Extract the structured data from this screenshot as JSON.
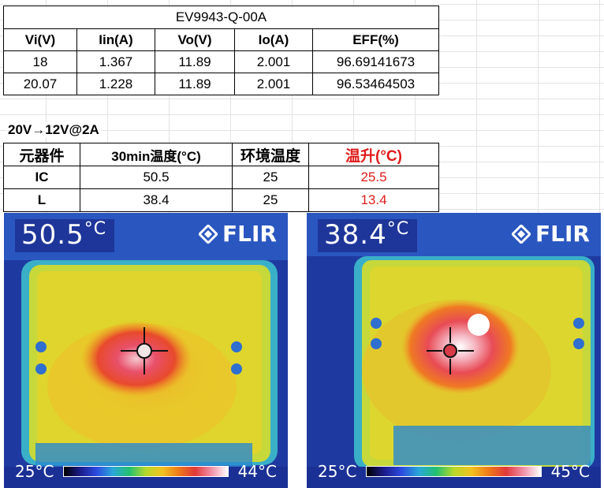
{
  "efficiency_table": {
    "title": "EV9943-Q-00A",
    "headers": [
      "Vi(V)",
      "Iin(A)",
      "Vo(V)",
      "Io(A)",
      "EFF(%)"
    ],
    "rows": [
      [
        "18",
        "1.367",
        "11.89",
        "2.001",
        "96.69141673"
      ],
      [
        "20.07",
        "1.228",
        "11.89",
        "2.001",
        "96.53464503"
      ]
    ]
  },
  "condition_label": "20V→12V@2A",
  "temperature_table": {
    "headers": [
      "元器件",
      "30min温度(°C)",
      "环境温度",
      "温升(°C)"
    ],
    "rows": [
      [
        "IC",
        "50.5",
        "25",
        "25.5"
      ],
      [
        "L",
        "38.4",
        "25",
        "13.4"
      ]
    ]
  },
  "thermal_images": [
    {
      "reading_value": "50.5",
      "reading_unit": "°C",
      "brand": "FLIR",
      "scale_min": "25°C",
      "scale_max": "44°C"
    },
    {
      "reading_value": "38.4",
      "reading_unit": "°C",
      "brand": "FLIR",
      "scale_min": "25°C",
      "scale_max": "45°C"
    }
  ],
  "colors": {
    "temperature_rise_text": "#e01a1a"
  }
}
